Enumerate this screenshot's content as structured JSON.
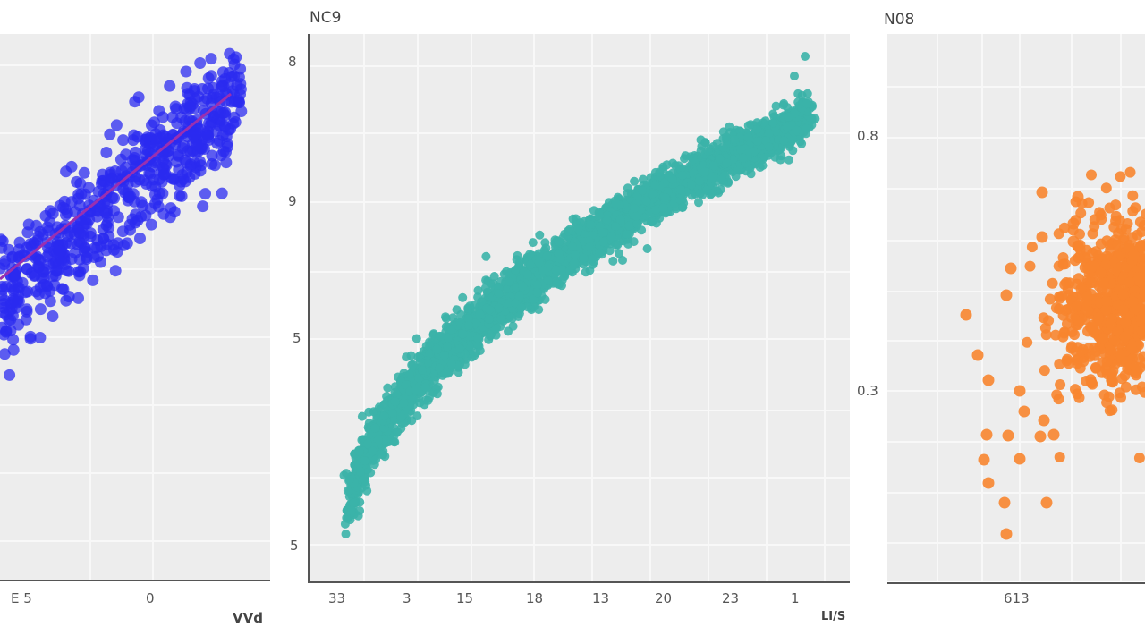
{
  "chart_data": [
    {
      "type": "scatter",
      "panel": "left",
      "title": "",
      "xlabel": "VVd",
      "ylabel": "",
      "x_tick_labels": [
        "E 5",
        "0"
      ],
      "y_tick_labels": [],
      "color": "#2b2bf0",
      "trend_line": {
        "color": "#9b2fb0",
        "type": "linear"
      },
      "grid": true,
      "description": "Dense positive linear correlation; points clustered along a rising regression line, clipped at left edge of image"
    },
    {
      "type": "scatter",
      "panel": "center",
      "title": "NC9",
      "xlabel": "LI/S",
      "ylabel": "",
      "x_tick_labels": [
        "33",
        "3",
        "15",
        "18",
        "13",
        "20",
        "23",
        "1"
      ],
      "y_tick_labels": [
        "8",
        "9",
        "5",
        "5"
      ],
      "color": "#3bb3a8",
      "grid": true,
      "description": "Very dense concave (logarithmic-like) increasing band of points from bottom-left to top-right"
    },
    {
      "type": "scatter",
      "panel": "right",
      "title": "N08",
      "xlabel": "",
      "ylabel": "",
      "x_tick_labels": [
        "613"
      ],
      "y_tick_labels": [
        "0.8",
        "0.3"
      ],
      "color": "#f7852f",
      "grid": true,
      "description": "Dense cluster of points centered near the right edge with scattered outliers to the left and below; clipped at right edge of image"
    }
  ],
  "panels": {
    "left": {
      "xlabel": "VVd",
      "xticks": [
        "E 5",
        "0"
      ]
    },
    "center": {
      "title": "NC9",
      "xlabel": "LI/S",
      "xticks": [
        "33",
        "3",
        "15",
        "18",
        "13",
        "20",
        "23",
        "1"
      ],
      "yticks": [
        "8",
        "9",
        "5",
        "5"
      ]
    },
    "right": {
      "title": "N08",
      "xticks": [
        "613"
      ],
      "yticks": [
        "0.8",
        "0.3"
      ]
    }
  },
  "colors": {
    "blue": "#2b2bf0",
    "trend": "#9b2fb0",
    "teal": "#3bb3a8",
    "orange": "#f7852f",
    "panel_bg": "#ededed"
  }
}
